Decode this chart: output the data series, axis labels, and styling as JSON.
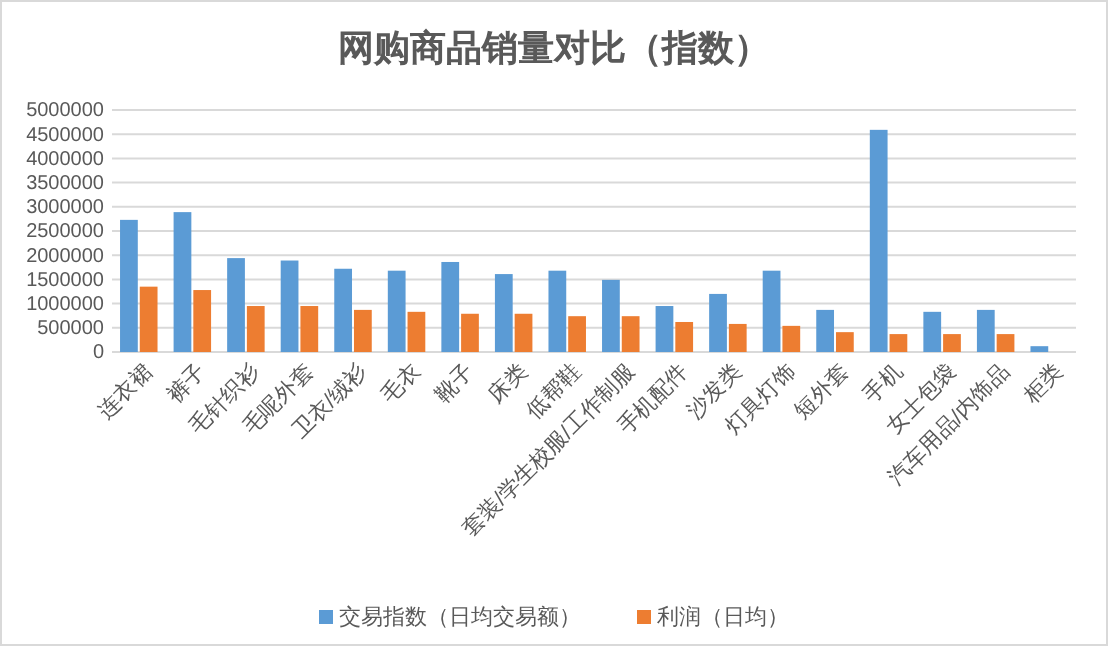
{
  "chart_data": {
    "type": "bar",
    "title": "网购商品销量对比（指数）",
    "categories": [
      "连衣裙",
      "裤子",
      "毛针织衫",
      "毛呢外套",
      "卫衣/绒衫",
      "毛衣",
      "靴子",
      "床类",
      "低帮鞋",
      "套装/学生校服/工作制服",
      "手机配件",
      "沙发类",
      "灯具灯饰",
      "短外套",
      "手机",
      "女士包袋",
      "汽车用品/内饰品",
      "柜类"
    ],
    "series": [
      {
        "name": "交易指数（日均交易额）",
        "color": "#5b9bd5",
        "values": [
          2730000,
          2890000,
          1940000,
          1890000,
          1720000,
          1680000,
          1860000,
          1610000,
          1680000,
          1490000,
          950000,
          1200000,
          1680000,
          870000,
          4590000,
          830000,
          870000,
          120000
        ]
      },
      {
        "name": "利润（日均）",
        "color": "#ed7d31",
        "values": [
          1350000,
          1280000,
          950000,
          950000,
          870000,
          830000,
          790000,
          790000,
          740000,
          740000,
          620000,
          580000,
          540000,
          410000,
          370000,
          370000,
          370000,
          0
        ]
      }
    ],
    "ylim": [
      0,
      5000000
    ],
    "yticks": [
      0,
      500000,
      1000000,
      1500000,
      2000000,
      2500000,
      3000000,
      3500000,
      4000000,
      4500000,
      5000000
    ],
    "grid": "y",
    "legend": "bottom"
  }
}
